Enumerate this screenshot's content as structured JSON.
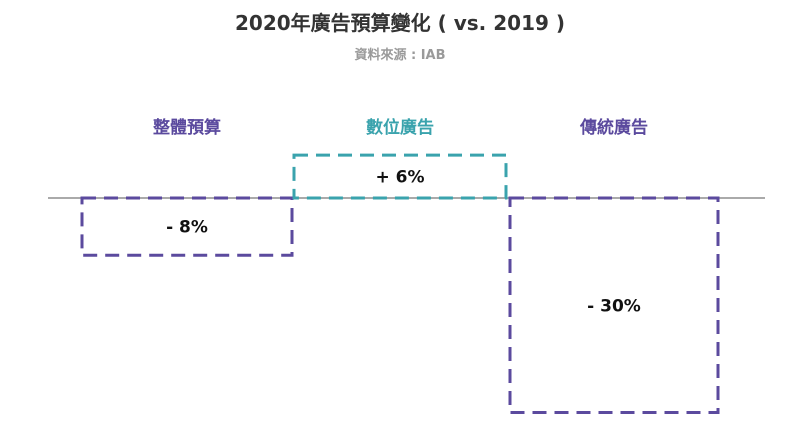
{
  "header": {
    "title": "2020年廣告預算變化 ( vs. 2019 )",
    "source": "資料來源 : IAB"
  },
  "chart_data": {
    "type": "bar",
    "categories": [
      "整體預算",
      "數位廣告",
      "傳統廣告"
    ],
    "values": [
      -8,
      6,
      -30
    ],
    "value_labels": [
      "- 8%",
      "+ 6%",
      "- 30%"
    ],
    "unit": "%",
    "bar_colors": [
      "#5b4a9e",
      "#3aa3ad",
      "#5b4a9e"
    ],
    "label_colors": [
      "#5b4a9e",
      "#3aa3ad",
      "#5b4a9e"
    ],
    "bar_style": "dashed-outline",
    "grid": false,
    "axis_color": "#aaaaaa"
  }
}
